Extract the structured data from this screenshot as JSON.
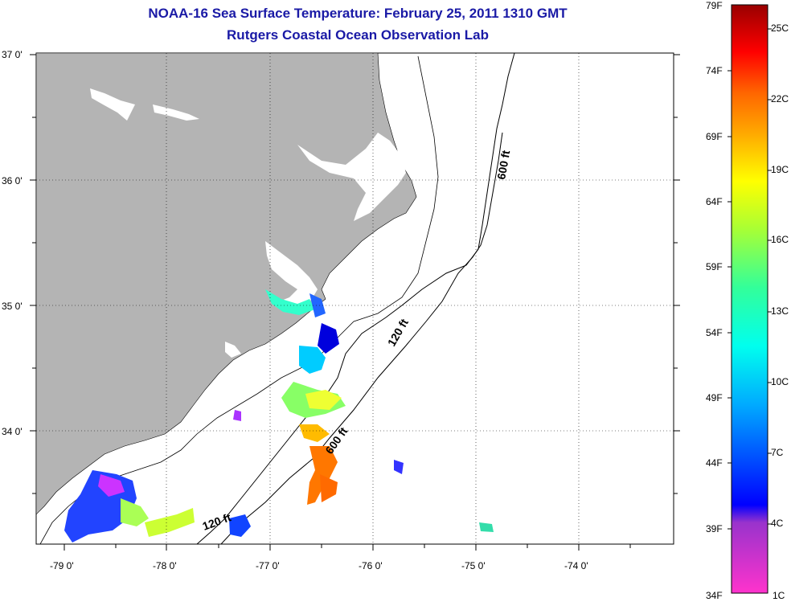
{
  "title_line1": "NOAA-16 Sea Surface Temperature:  February 25, 2011 1310 GMT",
  "title_line2": "Rutgers Coastal Ocean Observation Lab",
  "map": {
    "lat_labels": [
      "37 0'",
      "36 0'",
      "35 0'",
      "34 0'"
    ],
    "lon_labels": [
      "-79 0'",
      "-78 0'",
      "-77 0'",
      "-76 0'",
      "-75 0'",
      "-74 0'"
    ],
    "land_color": "#b4b4b4",
    "isobath_labels": [
      "600 ft",
      "120 ft",
      "600 ft",
      "120 ft"
    ]
  },
  "colorbar": {
    "fahrenheit_labels": [
      "79F",
      "74F",
      "69F",
      "64F",
      "59F",
      "54F",
      "49F",
      "44F",
      "39F",
      "34F"
    ],
    "celsius_labels": [
      "25C",
      "22C",
      "19C",
      "16C",
      "13C",
      "10C",
      "7C",
      "4C",
      "1C"
    ]
  }
}
